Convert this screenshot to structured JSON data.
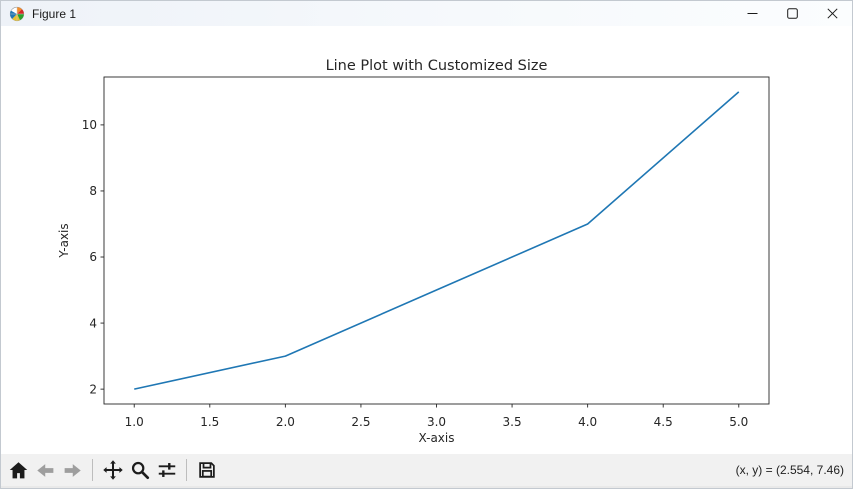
{
  "window": {
    "title": "Figure 1"
  },
  "chart_data": {
    "type": "line",
    "title": "Line Plot with Customized Size",
    "xlabel": "X-axis",
    "ylabel": "Y-axis",
    "x": [
      1,
      2,
      3,
      4,
      5
    ],
    "y": [
      2,
      3,
      5,
      7,
      11
    ],
    "line_color": "#1f77b4",
    "xlim": [
      0.8,
      5.2
    ],
    "ylim": [
      1.55,
      11.45
    ],
    "xticks": [
      1.0,
      1.5,
      2.0,
      2.5,
      3.0,
      3.5,
      4.0,
      4.5,
      5.0
    ],
    "xtick_labels": [
      "1.0",
      "1.5",
      "2.0",
      "2.5",
      "3.0",
      "3.5",
      "4.0",
      "4.5",
      "5.0"
    ],
    "yticks": [
      2,
      4,
      6,
      8,
      10
    ],
    "ytick_labels": [
      "2",
      "4",
      "6",
      "8",
      "10"
    ],
    "grid": false,
    "legend": null,
    "marker": "none"
  },
  "toolbar": {
    "buttons": [
      {
        "name": "home",
        "enabled": true
      },
      {
        "name": "back",
        "enabled": false
      },
      {
        "name": "forward",
        "enabled": false
      },
      {
        "name": "pan",
        "enabled": true
      },
      {
        "name": "zoom-to-rect",
        "enabled": true
      },
      {
        "name": "configure-subplots",
        "enabled": true
      },
      {
        "name": "save",
        "enabled": true
      }
    ],
    "status": "(x, y) = (2.554, 7.46)"
  },
  "colors": {
    "line": "#1f77b4",
    "canvas_bg": "#ffffff",
    "toolbar_bg": "#f1f1f1",
    "spine": "#262626"
  }
}
